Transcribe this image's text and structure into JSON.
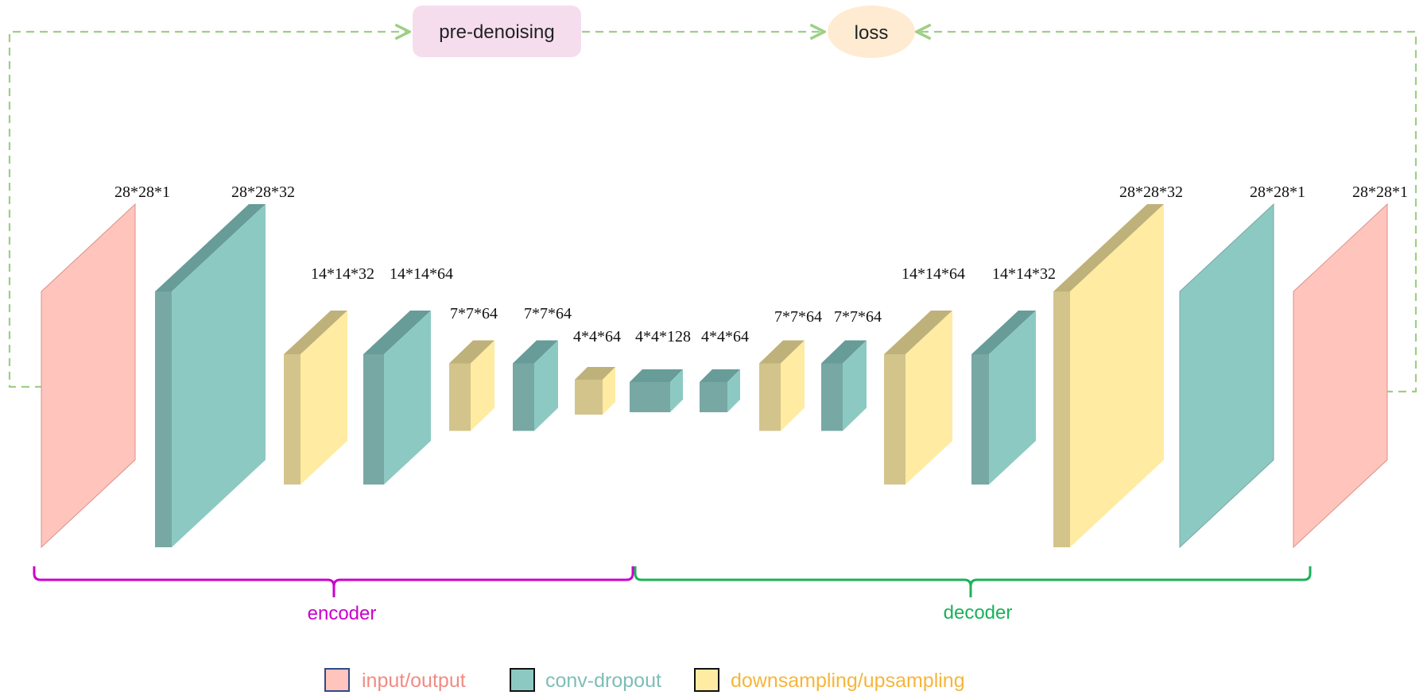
{
  "top_nodes": {
    "predenoise": {
      "label": "pre-denoising",
      "color": "#F5DDEE"
    },
    "loss": {
      "label": "loss",
      "color": "#FFEBD2"
    }
  },
  "colors": {
    "input_output": {
      "front": "#FFC4BC",
      "side": "#E8A49C",
      "top": "#F2B2AA",
      "stroke": "#D9918A"
    },
    "conv_dropout": {
      "front": "#8DC9C3",
      "side": "#78A8A4",
      "top": "#679C98"
    },
    "sampling": {
      "front": "#FFEBA1",
      "side": "#D3C48C",
      "top": "#BFB17A"
    },
    "flow_arrow": "#9ECF85",
    "encoder_brace": "#CC00CC",
    "decoder_brace": "#1BB15A"
  },
  "layers": [
    {
      "id": "enc-input",
      "type": "input_output",
      "dim": "28*28*1"
    },
    {
      "id": "enc-conv1",
      "type": "conv_dropout",
      "dim": "28*28*32"
    },
    {
      "id": "enc-down1",
      "type": "sampling",
      "dim": "14*14*32"
    },
    {
      "id": "enc-conv2",
      "type": "conv_dropout",
      "dim": "14*14*64"
    },
    {
      "id": "enc-down2",
      "type": "sampling",
      "dim": "7*7*64"
    },
    {
      "id": "enc-conv3",
      "type": "conv_dropout",
      "dim": "7*7*64"
    },
    {
      "id": "enc-down3",
      "type": "sampling",
      "dim": "4*4*64"
    },
    {
      "id": "bottleneck",
      "type": "conv_dropout",
      "dim": "4*4*128"
    },
    {
      "id": "dec-conv1",
      "type": "conv_dropout",
      "dim": "4*4*64"
    },
    {
      "id": "dec-up1",
      "type": "sampling",
      "dim": "7*7*64"
    },
    {
      "id": "dec-conv2",
      "type": "conv_dropout",
      "dim": "7*7*64"
    },
    {
      "id": "dec-up2",
      "type": "sampling",
      "dim": "14*14*64"
    },
    {
      "id": "dec-conv3",
      "type": "conv_dropout",
      "dim": "14*14*32"
    },
    {
      "id": "dec-up3",
      "type": "sampling",
      "dim": "28*28*32"
    },
    {
      "id": "dec-conv4",
      "type": "conv_dropout",
      "dim": "28*28*1"
    },
    {
      "id": "dec-output",
      "type": "input_output",
      "dim": "28*28*1"
    }
  ],
  "braces": {
    "encoder": {
      "label": "encoder"
    },
    "decoder": {
      "label": "decoder"
    }
  },
  "legend": [
    {
      "type": "input_output",
      "label": "input/output",
      "text_color": "#F08C84",
      "border": "#2F4A8A"
    },
    {
      "type": "conv_dropout",
      "label": "conv-dropout",
      "text_color": "#7FBDB8",
      "border": "#111111"
    },
    {
      "type": "sampling",
      "label": "downsampling/upsampling",
      "text_color": "#F7B53B",
      "border": "#111111"
    }
  ]
}
